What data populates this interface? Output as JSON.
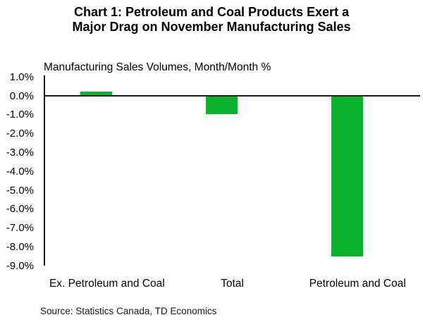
{
  "title": {
    "line1": "Chart 1: Petroleum and Coal Products Exert a",
    "line2": "Major Drag on November Manufacturing Sales"
  },
  "subtitle": "Manufacturing Sales Volumes, Month/Month %",
  "source": "Source: Statistics Canada, TD Economics",
  "chart_data": {
    "type": "bar",
    "title": "Chart 1: Petroleum and Coal Products Exert a Major Drag on November Manufacturing Sales",
    "axis_title": "Manufacturing Sales Volumes, Month/Month %",
    "categories": [
      "Ex. Petroleum and Coal",
      "Total",
      "Petroleum and Coal"
    ],
    "values": [
      0.2,
      -1.0,
      -8.5
    ],
    "unit": "%",
    "ylim": [
      -9.0,
      1.0
    ],
    "yticks": [
      {
        "v": 1.0,
        "label": "1.0%"
      },
      {
        "v": 0.0,
        "label": "0.0%"
      },
      {
        "v": -1.0,
        "label": "-1.0%"
      },
      {
        "v": -2.0,
        "label": "-2.0%"
      },
      {
        "v": -3.0,
        "label": "-3.0%"
      },
      {
        "v": -4.0,
        "label": "-4.0%"
      },
      {
        "v": -5.0,
        "label": "-5.0%"
      },
      {
        "v": -6.0,
        "label": "-6.0%"
      },
      {
        "v": -7.0,
        "label": "-7.0%"
      },
      {
        "v": -8.0,
        "label": "-8.0%"
      },
      {
        "v": -9.0,
        "label": "-9.0%"
      }
    ],
    "grid": false,
    "bar_color": "#0ab32b",
    "axis_color": "#1a1a1a",
    "source": "Source: Statistics Canada, TD Economics"
  }
}
